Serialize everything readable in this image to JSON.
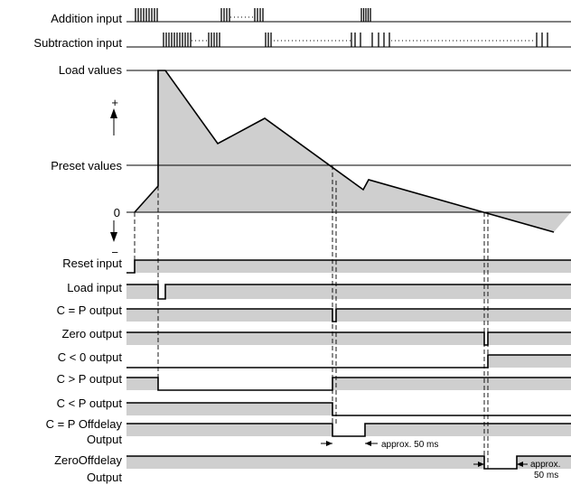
{
  "labels": {
    "addition_input": "Addition input",
    "subtraction_input": "Subtraction input",
    "load_values": "Load values",
    "plus_sign": "+",
    "preset_values": "Preset values",
    "zero_mark": "0",
    "minus_sign": "−",
    "reset_input": "Reset input",
    "load_input": "Load input",
    "c_eq_p_output": "C = P output",
    "zero_output": "Zero output",
    "c_lt_0_output": "C < 0 output",
    "c_gt_p_output": "C > P output",
    "c_lt_p_output": "C < P output",
    "c_eq_p_offdelay_1": "C = P Offdelay",
    "c_eq_p_offdelay_2": "Output",
    "zero_offdelay_1": "ZeroOffdelay",
    "zero_offdelay_2": "Output"
  },
  "annotations": {
    "delay_1": "approx. 50 ms",
    "delay_2a": "approx.",
    "delay_2b": "50 ms"
  },
  "colors": {
    "shade": "#cfcfcf",
    "line": "#000000"
  }
}
